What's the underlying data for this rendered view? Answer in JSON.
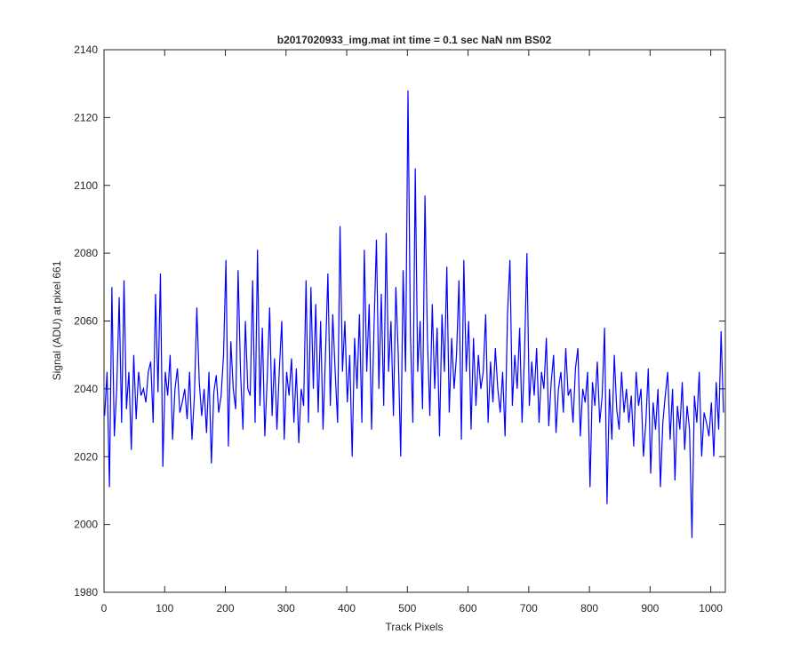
{
  "chart_data": {
    "type": "line",
    "title": "b2017020933_img.mat int time = 0.1 sec  NaN nm BS02",
    "x_label": "Track Pixels",
    "y_label": "Signal (ADU) at pixel 661",
    "xlim": [
      0,
      1024
    ],
    "ylim": [
      1980,
      2140
    ],
    "xticks": [
      0,
      100,
      200,
      300,
      400,
      500,
      600,
      700,
      800,
      900,
      1000
    ],
    "yticks": [
      1980,
      2000,
      2020,
      2040,
      2060,
      2080,
      2100,
      2120,
      2140
    ],
    "x": [
      1,
      5,
      9,
      13,
      17,
      21,
      25,
      29,
      33,
      37,
      41,
      45,
      49,
      53,
      57,
      61,
      65,
      69,
      73,
      77,
      81,
      85,
      89,
      93,
      97,
      101,
      105,
      109,
      113,
      117,
      121,
      125,
      129,
      133,
      137,
      141,
      145,
      149,
      153,
      157,
      161,
      165,
      169,
      173,
      177,
      181,
      185,
      189,
      193,
      197,
      201,
      205,
      209,
      213,
      217,
      221,
      225,
      229,
      233,
      237,
      241,
      245,
      249,
      253,
      257,
      261,
      265,
      269,
      273,
      277,
      281,
      285,
      289,
      293,
      297,
      301,
      305,
      309,
      313,
      317,
      321,
      325,
      329,
      333,
      337,
      341,
      345,
      349,
      353,
      357,
      361,
      365,
      369,
      373,
      377,
      381,
      385,
      389,
      393,
      397,
      401,
      405,
      409,
      413,
      417,
      421,
      425,
      429,
      433,
      437,
      441,
      445,
      449,
      453,
      457,
      461,
      465,
      469,
      473,
      477,
      481,
      485,
      489,
      493,
      497,
      501,
      505,
      509,
      513,
      517,
      521,
      525,
      529,
      533,
      537,
      541,
      545,
      549,
      553,
      557,
      561,
      565,
      569,
      573,
      577,
      581,
      585,
      589,
      593,
      597,
      601,
      605,
      609,
      613,
      617,
      621,
      625,
      629,
      633,
      637,
      641,
      645,
      649,
      653,
      657,
      661,
      665,
      669,
      673,
      677,
      681,
      685,
      689,
      693,
      697,
      701,
      705,
      709,
      713,
      717,
      721,
      725,
      729,
      733,
      737,
      741,
      745,
      749,
      753,
      757,
      761,
      765,
      769,
      773,
      777,
      781,
      785,
      789,
      793,
      797,
      801,
      805,
      809,
      813,
      817,
      821,
      825,
      829,
      833,
      837,
      841,
      845,
      849,
      853,
      857,
      861,
      865,
      869,
      873,
      877,
      881,
      885,
      889,
      893,
      897,
      901,
      905,
      909,
      913,
      917,
      921,
      925,
      929,
      933,
      937,
      941,
      945,
      949,
      953,
      957,
      961,
      965,
      969,
      973,
      977,
      981,
      985,
      989,
      993,
      997,
      1001,
      1005,
      1009,
      1013,
      1017,
      1021
    ],
    "series": [
      {
        "color": "#0000ff",
        "values": [
          2032,
          2045,
          2011,
          2070,
          2026,
          2040,
          2067,
          2030,
          2072,
          2034,
          2045,
          2022,
          2050,
          2031,
          2045,
          2038,
          2040,
          2036,
          2045,
          2048,
          2030,
          2068,
          2039,
          2074,
          2017,
          2045,
          2038,
          2050,
          2025,
          2040,
          2046,
          2033,
          2036,
          2040,
          2031,
          2045,
          2025,
          2038,
          2064,
          2042,
          2032,
          2040,
          2027,
          2045,
          2018,
          2039,
          2044,
          2033,
          2038,
          2050,
          2078,
          2023,
          2054,
          2040,
          2034,
          2075,
          2045,
          2028,
          2060,
          2040,
          2038,
          2072,
          2030,
          2081,
          2035,
          2058,
          2026,
          2043,
          2064,
          2032,
          2049,
          2028,
          2046,
          2060,
          2025,
          2045,
          2038,
          2049,
          2030,
          2046,
          2024,
          2040,
          2035,
          2072,
          2030,
          2070,
          2040,
          2065,
          2033,
          2060,
          2028,
          2050,
          2074,
          2035,
          2062,
          2045,
          2030,
          2088,
          2045,
          2060,
          2036,
          2050,
          2020,
          2055,
          2040,
          2062,
          2030,
          2081,
          2045,
          2065,
          2028,
          2058,
          2084,
          2040,
          2068,
          2035,
          2086,
          2045,
          2060,
          2032,
          2070,
          2050,
          2020,
          2075,
          2045,
          2128,
          2056,
          2030,
          2105,
          2045,
          2060,
          2034,
          2097,
          2055,
          2032,
          2065,
          2040,
          2058,
          2026,
          2062,
          2045,
          2076,
          2033,
          2055,
          2040,
          2050,
          2072,
          2025,
          2078,
          2045,
          2060,
          2028,
          2055,
          2035,
          2050,
          2040,
          2045,
          2062,
          2030,
          2048,
          2036,
          2052,
          2040,
          2033,
          2045,
          2026,
          2062,
          2078,
          2035,
          2050,
          2040,
          2058,
          2030,
          2050,
          2080,
          2035,
          2048,
          2038,
          2052,
          2030,
          2045,
          2040,
          2055,
          2029,
          2042,
          2050,
          2027,
          2040,
          2045,
          2033,
          2052,
          2038,
          2040,
          2030,
          2046,
          2052,
          2026,
          2040,
          2036,
          2045,
          2011,
          2042,
          2035,
          2048,
          2030,
          2038,
          2058,
          2006,
          2040,
          2025,
          2050,
          2034,
          2028,
          2045,
          2033,
          2040,
          2030,
          2038,
          2023,
          2045,
          2035,
          2040,
          2020,
          2030,
          2046,
          2015,
          2036,
          2028,
          2040,
          2011,
          2030,
          2038,
          2045,
          2025,
          2040,
          2013,
          2035,
          2028,
          2042,
          2022,
          2035,
          2028,
          1996,
          2038,
          2030,
          2045,
          2020,
          2033,
          2030,
          2026,
          2036,
          2020,
          2042,
          2028,
          2057,
          2033
        ]
      }
    ]
  }
}
